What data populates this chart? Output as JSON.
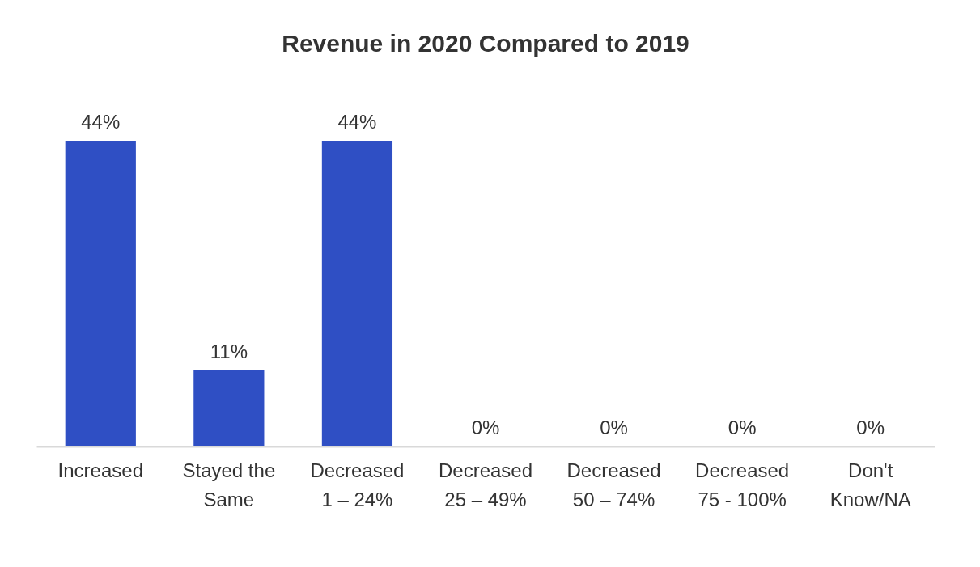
{
  "chart_data": {
    "type": "bar",
    "title": "Revenue in 2020 Compared to 2019",
    "categories": [
      "Increased",
      "Stayed the\nSame",
      "Decreased\n1 – 24%",
      "Decreased\n25 – 49%",
      "Decreased\n50 – 74%",
      "Decreased\n75 - 100%",
      "Don't\nKnow/NA"
    ],
    "values": [
      44,
      11,
      44,
      0,
      0,
      0,
      0
    ],
    "value_labels": [
      "44%",
      "11%",
      "44%",
      "0%",
      "0%",
      "0%",
      "0%"
    ],
    "color": "#2f4fc4",
    "grid": false
  }
}
